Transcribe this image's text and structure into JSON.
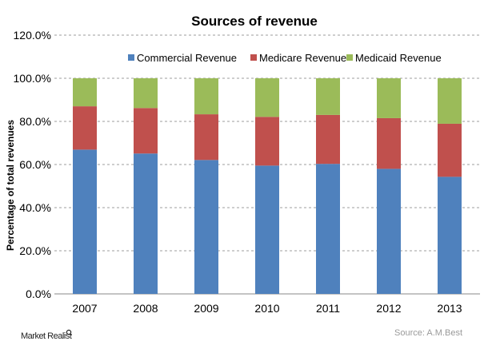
{
  "chart_data": {
    "type": "bar",
    "stacked": true,
    "title": "Sources of revenue",
    "xlabel": "",
    "ylabel": "Percentage of total revenues",
    "ylim": [
      0,
      120
    ],
    "yticks": [
      "0.0%",
      "20.0%",
      "40.0%",
      "60.0%",
      "80.0%",
      "100.0%",
      "120.0%"
    ],
    "grid": true,
    "legend_position": "top",
    "categories": [
      "2007",
      "2008",
      "2009",
      "2010",
      "2011",
      "2012",
      "2013"
    ],
    "series": [
      {
        "name": "Commercial Revenue",
        "color": "#4f81bd",
        "values": [
          66.9,
          65.1,
          62.1,
          59.5,
          60.3,
          58.0,
          54.3
        ]
      },
      {
        "name": "Medicare Revenue",
        "color": "#c0504d",
        "values": [
          20.1,
          21.1,
          21.2,
          22.6,
          22.7,
          23.5,
          24.6
        ]
      },
      {
        "name": "Medicaid Revenue",
        "color": "#9bbb59",
        "values": [
          13.0,
          13.8,
          16.7,
          17.9,
          17.0,
          18.5,
          21.1
        ]
      }
    ]
  },
  "footer": {
    "source": "Source: A.M.Best",
    "logo": "Market Realist"
  }
}
